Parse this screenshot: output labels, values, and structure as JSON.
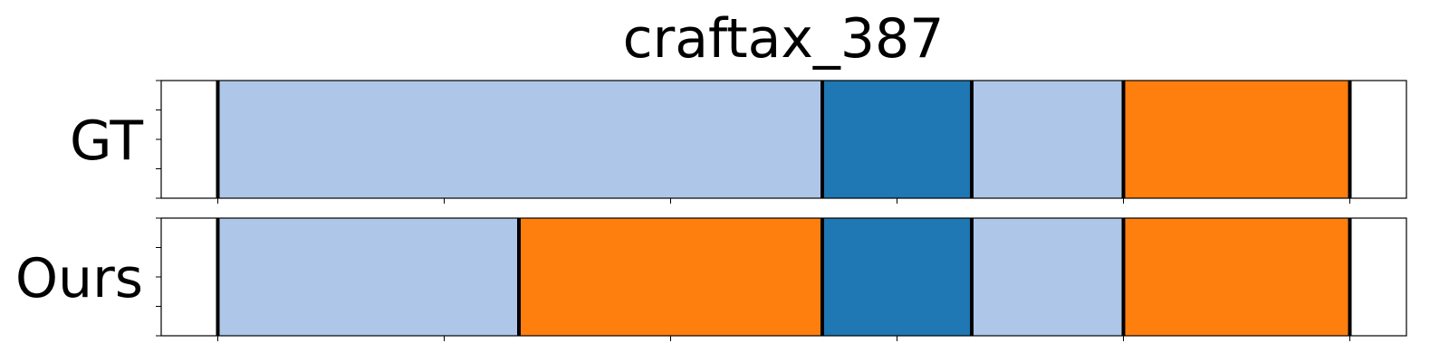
{
  "chart_data": {
    "type": "segmentation-timeline",
    "title": "craftax_387",
    "xlim": [
      -0.25,
      5.25
    ],
    "x_ticks": [
      0,
      1,
      2,
      3,
      4,
      5
    ],
    "tick_labels_visible": false,
    "grid": false,
    "colors": {
      "light_blue": "#aec7e8",
      "dark_blue": "#1f77b4",
      "orange": "#ff7f0e",
      "boundary": "#000000"
    },
    "rows": [
      {
        "label": "GT",
        "segments": [
          {
            "start": 0.0,
            "end": 2.67,
            "color": "light_blue"
          },
          {
            "start": 2.67,
            "end": 3.33,
            "color": "dark_blue"
          },
          {
            "start": 3.33,
            "end": 4.0,
            "color": "light_blue"
          },
          {
            "start": 4.0,
            "end": 5.0,
            "color": "orange"
          }
        ]
      },
      {
        "label": "Ours",
        "segments": [
          {
            "start": 0.0,
            "end": 1.33,
            "color": "light_blue"
          },
          {
            "start": 1.33,
            "end": 2.67,
            "color": "orange"
          },
          {
            "start": 2.67,
            "end": 3.33,
            "color": "dark_blue"
          },
          {
            "start": 3.33,
            "end": 4.0,
            "color": "light_blue"
          },
          {
            "start": 4.0,
            "end": 5.0,
            "color": "orange"
          }
        ]
      }
    ]
  }
}
